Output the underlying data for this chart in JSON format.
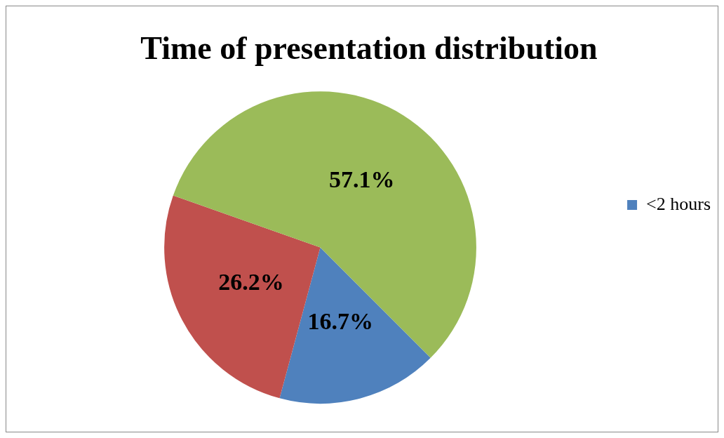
{
  "chart_data": {
    "type": "pie",
    "title": "Time of presentation distribution",
    "categories": [
      "<2 hours",
      null,
      null
    ],
    "values": [
      16.7,
      26.2,
      57.1
    ],
    "colors": [
      "#4f81bd",
      "#c0504d",
      "#9bbb59"
    ],
    "value_labels": [
      "16.7%",
      "26.2%",
      "57.1%"
    ],
    "legend": "right"
  }
}
